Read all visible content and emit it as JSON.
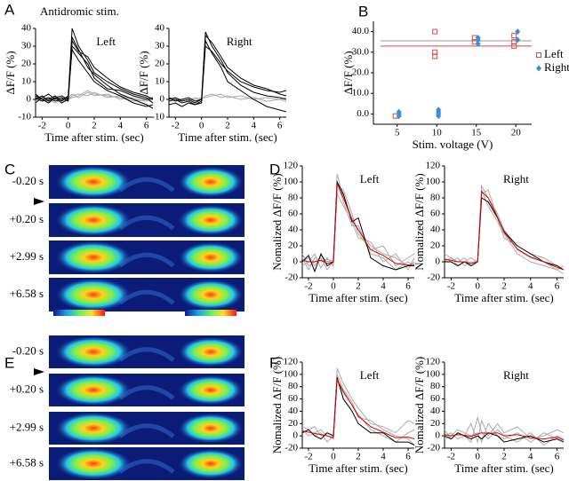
{
  "panel_labels": [
    "A",
    "B",
    "C",
    "D",
    "E",
    "F"
  ],
  "image_times": [
    "-0.20 s",
    "+0.20 s",
    "+2.99 s",
    "+6.58 s"
  ],
  "chart_data": [
    {
      "type": "line",
      "title": "Antidromic stim.",
      "label": "Left",
      "ylabel": "ΔF/F (%)",
      "xlabel": "Time after stim. (sec)",
      "xlim": [
        -2.5,
        6.5
      ],
      "xticks": [
        -2,
        0,
        2,
        4,
        6
      ],
      "ylim": [
        -10,
        40
      ],
      "yticks": [
        -10,
        0,
        10,
        20,
        30,
        40
      ],
      "x": [
        -2.5,
        -2,
        -1.5,
        -1,
        -0.5,
        0,
        0.3,
        0.8,
        1.5,
        2,
        3,
        4,
        5,
        6,
        6.5
      ],
      "series": [
        {
          "color": "#aaaaaa",
          "values": [
            1,
            0,
            -1,
            0,
            1,
            0,
            2,
            3,
            2,
            4,
            1,
            2,
            0,
            -1,
            0
          ]
        },
        {
          "color": "#aaaaaa",
          "values": [
            -1,
            1,
            0,
            -2,
            0,
            1,
            3,
            1,
            4,
            2,
            3,
            0,
            1,
            -1,
            1
          ]
        },
        {
          "color": "#aaaaaa",
          "values": [
            0,
            -1,
            1,
            1,
            -1,
            0,
            1,
            2,
            5,
            3,
            2,
            1,
            -1,
            0,
            -2
          ]
        },
        {
          "color": "#000000",
          "values": [
            2,
            0,
            1,
            -1,
            0,
            1,
            40,
            30,
            22,
            15,
            10,
            6,
            3,
            1,
            -2
          ]
        },
        {
          "color": "#000000",
          "values": [
            0,
            2,
            -1,
            1,
            -2,
            0,
            35,
            28,
            18,
            14,
            8,
            3,
            0,
            -3,
            -5
          ]
        },
        {
          "color": "#000000",
          "values": [
            -2,
            1,
            3,
            0,
            1,
            -1,
            30,
            26,
            20,
            12,
            6,
            5,
            2,
            0,
            1
          ]
        },
        {
          "color": "#000000",
          "values": [
            1,
            -1,
            0,
            2,
            -1,
            2,
            28,
            22,
            15,
            10,
            5,
            2,
            -2,
            -4,
            -3
          ]
        },
        {
          "color": "#000000",
          "values": [
            3,
            0,
            -2,
            1,
            2,
            0,
            33,
            27,
            24,
            18,
            12,
            7,
            4,
            2,
            0
          ]
        }
      ]
    },
    {
      "type": "line",
      "label": "Right",
      "ylabel": "ΔF/F (%)",
      "xlabel": "Time after stim. (sec)",
      "xlim": [
        -2.5,
        6.5
      ],
      "xticks": [
        -2,
        0,
        2,
        4,
        6
      ],
      "ylim": [
        -10,
        40
      ],
      "yticks": [
        -10,
        0,
        10,
        20,
        30,
        40
      ],
      "x": [
        -2.5,
        -2,
        -1.5,
        -1,
        -0.5,
        0,
        0.3,
        0.8,
        1.5,
        2,
        3,
        4,
        5,
        6,
        6.5
      ],
      "series": [
        {
          "color": "#aaaaaa",
          "values": [
            0,
            1,
            0,
            -1,
            1,
            0,
            2,
            3,
            1,
            2,
            0,
            1,
            -1,
            0,
            1
          ]
        },
        {
          "color": "#aaaaaa",
          "values": [
            1,
            0,
            -1,
            0,
            0,
            1,
            1,
            2,
            3,
            1,
            2,
            0,
            1,
            0,
            -1
          ]
        },
        {
          "color": "#000000",
          "values": [
            0,
            1,
            -1,
            0,
            -2,
            0,
            38,
            30,
            22,
            15,
            8,
            4,
            2,
            1,
            0
          ]
        },
        {
          "color": "#000000",
          "values": [
            -3,
            -2,
            -4,
            -2,
            -3,
            -2,
            33,
            26,
            18,
            10,
            5,
            0,
            -4,
            -6,
            -7
          ]
        },
        {
          "color": "#000000",
          "values": [
            -1,
            0,
            -2,
            -1,
            -3,
            -1,
            30,
            27,
            20,
            16,
            10,
            7,
            5,
            4,
            5
          ]
        },
        {
          "color": "#000000",
          "values": [
            1,
            -1,
            0,
            1,
            -1,
            0,
            36,
            32,
            24,
            18,
            12,
            8,
            6,
            3,
            2
          ]
        }
      ]
    },
    {
      "type": "scatter",
      "ylabel": "ΔF/F (%)",
      "xlabel": "Stim. voltage (V)",
      "legend": "right",
      "xlim": [
        2,
        22
      ],
      "xticks": [
        5,
        10,
        15,
        20
      ],
      "ylim": [
        -5,
        45
      ],
      "yticks": [
        {
          "value": 0,
          "label": "0.0"
        },
        {
          "value": 10,
          "label": "10.0"
        },
        {
          "value": 20,
          "label": "20.0"
        },
        {
          "value": 30,
          "label": "30.0"
        },
        {
          "value": 40,
          "label": "40.0"
        }
      ],
      "hlines": [
        {
          "value": 35.5,
          "color": "#999999"
        },
        {
          "value": 33,
          "color": "#d9463e"
        }
      ],
      "series": [
        {
          "name": "Left",
          "color": "#d9463e",
          "marker": "square",
          "x": [
            5,
            10,
            10,
            10,
            15,
            15,
            20,
            20,
            20
          ],
          "values": [
            -1,
            40,
            28,
            30,
            37,
            35,
            38,
            35,
            33
          ]
        },
        {
          "name": "Right",
          "color": "#3c8fd6",
          "marker": "diamond",
          "x": [
            5,
            5,
            5,
            5,
            10,
            10,
            10,
            10,
            15,
            15,
            15,
            20,
            20
          ],
          "values": [
            -1,
            0,
            1,
            -1,
            0,
            2,
            -1,
            1,
            34,
            36,
            37,
            40,
            36
          ]
        }
      ]
    },
    {
      "type": "line",
      "label": "Left",
      "ylabel": "Nomalized ΔF/F (%)",
      "xlabel": "Time after stim. (sec)",
      "xlim": [
        -2.5,
        6.5
      ],
      "xticks": [
        -2,
        0,
        2,
        4,
        6
      ],
      "ylim": [
        -20,
        120
      ],
      "yticks": [
        -20,
        0,
        20,
        40,
        60,
        80,
        100,
        120
      ],
      "x": [
        -2.5,
        -2,
        -1.5,
        -1,
        -0.5,
        0,
        0.3,
        0.8,
        1.5,
        2,
        3,
        4,
        5,
        6,
        6.5
      ],
      "series": [
        {
          "color": "#aaaaaa",
          "values": [
            0,
            5,
            -5,
            8,
            0,
            2,
            110,
            80,
            55,
            40,
            20,
            10,
            5,
            -5,
            0
          ]
        },
        {
          "color": "#aaaaaa",
          "values": [
            10,
            -5,
            0,
            5,
            -10,
            0,
            95,
            90,
            60,
            35,
            15,
            20,
            -5,
            5,
            10
          ]
        },
        {
          "color": "#aaaaaa",
          "values": [
            -5,
            0,
            10,
            -8,
            5,
            -5,
            85,
            70,
            50,
            30,
            25,
            0,
            10,
            -10,
            5
          ]
        },
        {
          "color": "#aaaaaa",
          "values": [
            5,
            -10,
            5,
            0,
            3,
            0,
            100,
            75,
            45,
            45,
            10,
            5,
            -10,
            0,
            -5
          ]
        },
        {
          "color": "#000000",
          "values": [
            0,
            8,
            -12,
            10,
            -5,
            0,
            100,
            85,
            50,
            55,
            5,
            -5,
            -10,
            -5,
            -5
          ]
        },
        {
          "color": "#e00000",
          "values": [
            2,
            0,
            0,
            2,
            -2,
            0,
            98,
            80,
            52,
            40,
            15,
            8,
            -2,
            -4,
            -3
          ]
        }
      ]
    },
    {
      "type": "line",
      "label": "Right",
      "ylabel": "Nomalized ΔF/F (%)",
      "xlabel": "Time after stim. (sec)",
      "xlim": [
        -2.5,
        6.5
      ],
      "xticks": [
        -2,
        0,
        2,
        4,
        6
      ],
      "ylim": [
        -20,
        120
      ],
      "yticks": [
        -20,
        0,
        20,
        40,
        60,
        80,
        100,
        120
      ],
      "x": [
        -2.5,
        -2,
        -1.5,
        -1,
        -0.5,
        0,
        0.3,
        0.8,
        1.5,
        2,
        3,
        4,
        5,
        6,
        6.5
      ],
      "series": [
        {
          "color": "#aaaaaa",
          "values": [
            5,
            0,
            5,
            -5,
            0,
            0,
            95,
            80,
            60,
            40,
            15,
            5,
            0,
            -10,
            -15
          ]
        },
        {
          "color": "#aaaaaa",
          "values": [
            0,
            5,
            0,
            5,
            -5,
            0,
            85,
            90,
            55,
            30,
            20,
            10,
            5,
            -5,
            -10
          ]
        },
        {
          "color": "#aaaaaa",
          "values": [
            10,
            5,
            -5,
            0,
            5,
            0,
            90,
            70,
            50,
            35,
            10,
            0,
            -5,
            -10,
            -5
          ]
        },
        {
          "color": "#000000",
          "values": [
            0,
            0,
            -5,
            0,
            -5,
            0,
            80,
            75,
            55,
            38,
            20,
            10,
            0,
            -5,
            -10
          ]
        },
        {
          "color": "#e00000",
          "values": [
            3,
            2,
            0,
            0,
            -2,
            0,
            88,
            80,
            56,
            37,
            16,
            6,
            0,
            -7,
            -10
          ]
        }
      ]
    },
    {
      "type": "line",
      "label": "Left",
      "ylabel": "Nomalized ΔF/F (%)",
      "xlabel": "Time after stim. (sec)",
      "xlim": [
        -2.5,
        6.5
      ],
      "xticks": [
        -2,
        0,
        2,
        4,
        6
      ],
      "ylim": [
        -20,
        120
      ],
      "yticks": [
        -20,
        0,
        20,
        40,
        60,
        80,
        100,
        120
      ],
      "x": [
        -2.5,
        -2,
        -1.5,
        -1,
        -0.5,
        0,
        0.3,
        0.8,
        1.5,
        2,
        3,
        4,
        5,
        6,
        6.5
      ],
      "series": [
        {
          "color": "#aaaaaa",
          "values": [
            15,
            10,
            0,
            5,
            -10,
            0,
            110,
            85,
            60,
            45,
            20,
            15,
            5,
            25,
            20
          ]
        },
        {
          "color": "#aaaaaa",
          "values": [
            5,
            10,
            15,
            0,
            5,
            0,
            90,
            70,
            50,
            35,
            10,
            0,
            -10,
            5,
            10
          ]
        },
        {
          "color": "#aaaaaa",
          "values": [
            10,
            0,
            5,
            10,
            0,
            -5,
            100,
            75,
            55,
            30,
            25,
            10,
            0,
            -5,
            -15
          ]
        },
        {
          "color": "#000000",
          "values": [
            5,
            10,
            0,
            -5,
            5,
            0,
            95,
            60,
            40,
            20,
            5,
            5,
            -10,
            -10,
            -15
          ]
        },
        {
          "color": "#e00000",
          "values": [
            8,
            6,
            4,
            2,
            0,
            -3,
            92,
            72,
            50,
            32,
            15,
            6,
            -3,
            -2,
            -5
          ]
        }
      ]
    },
    {
      "type": "line",
      "label": "Right",
      "ylabel": "Nomalized ΔF/F (%)",
      "xlabel": "Time after stim. (sec)",
      "xlim": [
        -2.5,
        6.5
      ],
      "xticks": [
        -2,
        0,
        2,
        4,
        6
      ],
      "ylim": [
        -20,
        120
      ],
      "yticks": [
        -20,
        0,
        20,
        40,
        60,
        80,
        100,
        120
      ],
      "x": [
        -2.5,
        -2,
        -1.5,
        -1,
        -0.5,
        0,
        0.3,
        0.8,
        1.5,
        2,
        3,
        4,
        5,
        6,
        6.5
      ],
      "series": [
        {
          "color": "#aaaaaa",
          "values": [
            0,
            5,
            -5,
            0,
            20,
            -10,
            25,
            0,
            20,
            5,
            15,
            -5,
            0,
            10,
            5
          ]
        },
        {
          "color": "#aaaaaa",
          "values": [
            10,
            -5,
            5,
            0,
            -10,
            30,
            5,
            -5,
            10,
            0,
            -10,
            5,
            -15,
            0,
            -5
          ]
        },
        {
          "color": "#aaaaaa",
          "values": [
            -5,
            0,
            10,
            5,
            0,
            5,
            -10,
            20,
            0,
            -5,
            5,
            -10,
            5,
            -5,
            -10
          ]
        },
        {
          "color": "#000000",
          "values": [
            0,
            -5,
            5,
            0,
            -5,
            0,
            -5,
            5,
            0,
            -10,
            -5,
            0,
            -10,
            -5,
            -10
          ]
        },
        {
          "color": "#e00000",
          "values": [
            2,
            0,
            2,
            1,
            -1,
            3,
            5,
            4,
            5,
            0,
            2,
            -3,
            -5,
            -2,
            -7
          ]
        }
      ]
    }
  ]
}
